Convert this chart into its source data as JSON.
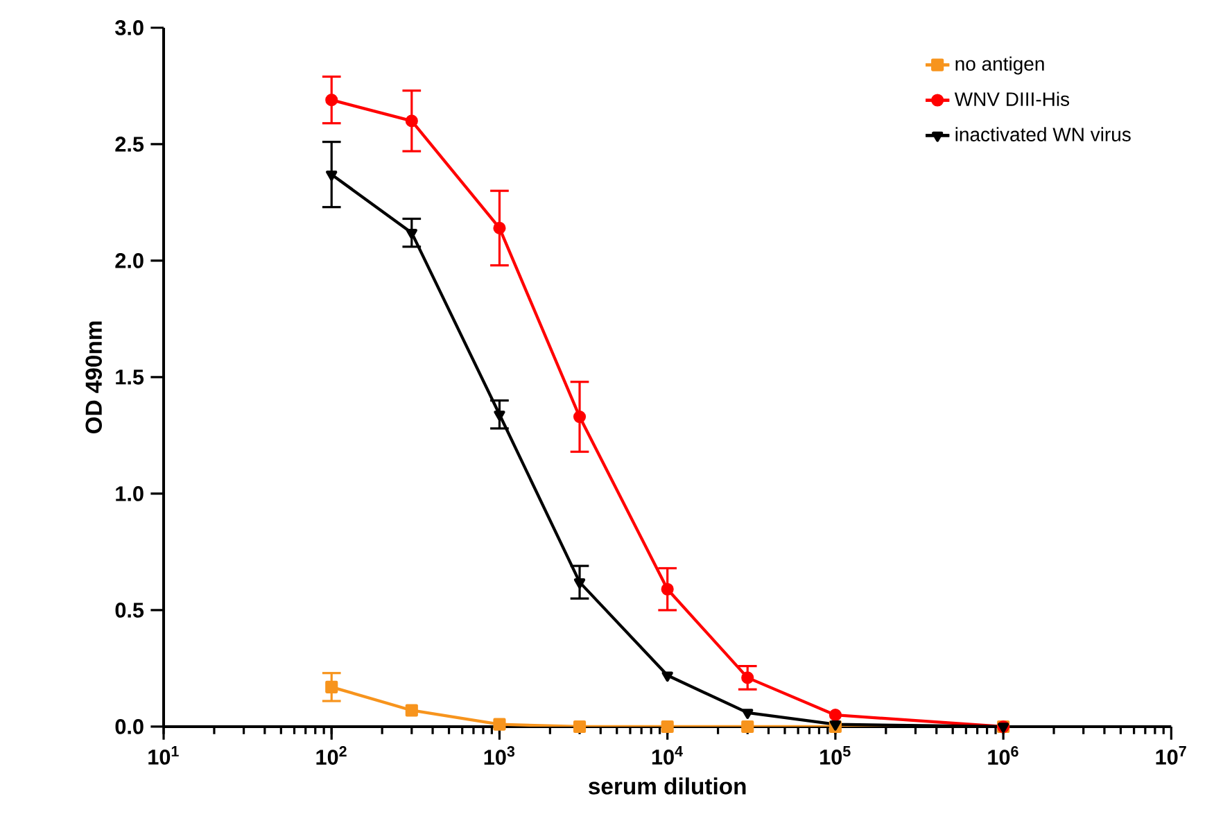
{
  "chart_data": {
    "type": "line",
    "xlabel": "serum dilution",
    "ylabel": "OD 490nm",
    "log": "x",
    "x": [
      100,
      300,
      1000,
      3000,
      10000,
      30000,
      100000,
      1000000
    ],
    "xlim": [
      10,
      10000000
    ],
    "ylim": [
      0,
      3
    ],
    "xticks": [
      {
        "value": 10,
        "label": "10$^{1}$"
      },
      {
        "value": 100,
        "label": "10$^{2}$"
      },
      {
        "value": 1000,
        "label": "10$^{3}$"
      },
      {
        "value": 10000,
        "label": "10$^{4}$"
      },
      {
        "value": 100000,
        "label": "10$^{5}$"
      },
      {
        "value": 1000000,
        "label": "10$^{6}$"
      },
      {
        "value": 10000000,
        "label": "10$^{7}$"
      }
    ],
    "yticks": [
      {
        "value": 0,
        "label": "0.0"
      },
      {
        "value": 0.5,
        "label": "0.5"
      },
      {
        "value": 1,
        "label": "1.0"
      },
      {
        "value": 1.5,
        "label": "1.5"
      },
      {
        "value": 2,
        "label": "2.0"
      },
      {
        "value": 2.5,
        "label": "2.5"
      },
      {
        "value": 3,
        "label": "3.0"
      }
    ],
    "legend": "top right",
    "grid": false,
    "line_style": "solid",
    "series": [
      {
        "name": "no antigen",
        "color": "#f7941d",
        "marker": "square",
        "values": [
          0.17,
          0.07,
          0.01,
          0.0,
          0.0,
          0.0,
          0.0,
          0.0
        ],
        "errors": [
          0.06,
          null,
          null,
          null,
          null,
          null,
          null,
          null
        ]
      },
      {
        "name": "WNV DIII-His",
        "color": "#ff0000",
        "marker": "circle",
        "values": [
          2.69,
          2.6,
          2.14,
          1.33,
          0.59,
          0.21,
          0.05,
          0.0
        ],
        "errors": [
          0.1,
          0.13,
          0.16,
          0.15,
          0.09,
          0.05,
          null,
          null
        ]
      },
      {
        "name": "inactivated WN virus",
        "color": "#000000",
        "marker": "triangle",
        "values": [
          2.37,
          2.12,
          1.34,
          0.62,
          0.22,
          0.06,
          0.01,
          0.0
        ],
        "errors": [
          0.14,
          0.06,
          0.06,
          0.07,
          null,
          null,
          null,
          null
        ]
      }
    ]
  }
}
